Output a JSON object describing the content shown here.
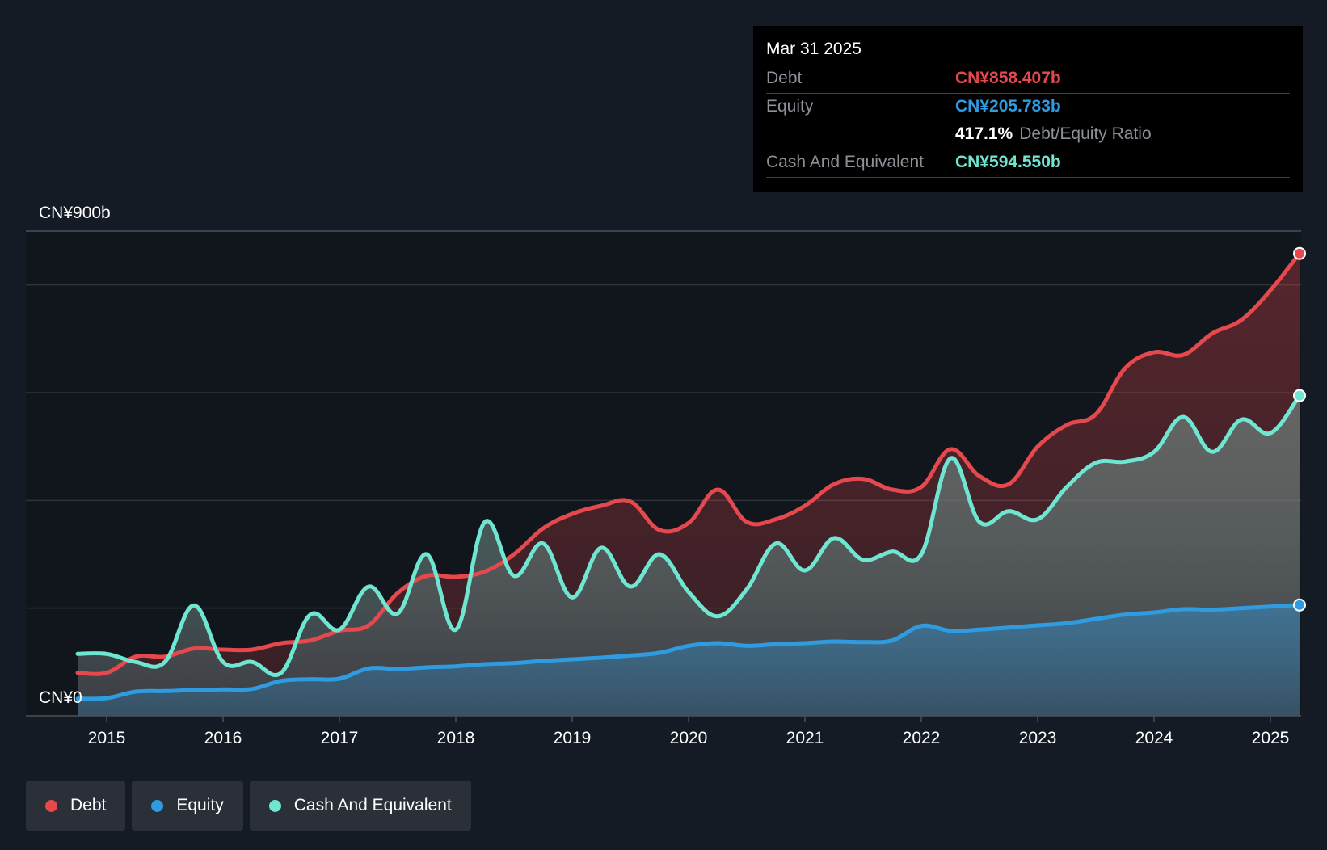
{
  "colors": {
    "debt": "#e5484d",
    "equity": "#2f9be0",
    "cash": "#6fe6d2",
    "background": "#151b24",
    "plot_background": "#11161d",
    "grid": "#2f353d"
  },
  "tooltip": {
    "date": "Mar 31 2025",
    "debt_label": "Debt",
    "debt_value": "CN¥858.407b",
    "equity_label": "Equity",
    "equity_value": "CN¥205.783b",
    "ratio_value": "417.1%",
    "ratio_label": "Debt/Equity Ratio",
    "cash_label": "Cash And Equivalent",
    "cash_value": "CN¥594.550b"
  },
  "legend": {
    "debt": "Debt",
    "equity": "Equity",
    "cash": "Cash And Equivalent"
  },
  "chart_data": {
    "type": "area",
    "title": "",
    "xlabel": "",
    "ylabel": "",
    "y_unit": "CN¥ billions",
    "ylim": [
      0,
      900
    ],
    "xlim": [
      2014.75,
      2025.25
    ],
    "y_axis_labels": {
      "max": "CN¥900b",
      "min": "CN¥0"
    },
    "x_ticks": [
      2015,
      2016,
      2017,
      2018,
      2019,
      2020,
      2021,
      2022,
      2023,
      2024,
      2025
    ],
    "x_tick_labels": [
      "2015",
      "2016",
      "2017",
      "2018",
      "2019",
      "2020",
      "2021",
      "2022",
      "2023",
      "2024",
      "2025"
    ],
    "gridlines": [
      0,
      200,
      400,
      600,
      800,
      900
    ],
    "legend_position": "bottom-left",
    "series": [
      {
        "name": "Debt",
        "key": "debt",
        "points": [
          [
            2014.75,
            80
          ],
          [
            2015.0,
            80
          ],
          [
            2015.25,
            110
          ],
          [
            2015.5,
            110
          ],
          [
            2015.75,
            125
          ],
          [
            2016.0,
            123
          ],
          [
            2016.25,
            123
          ],
          [
            2016.5,
            135
          ],
          [
            2016.75,
            140
          ],
          [
            2017.0,
            158
          ],
          [
            2017.25,
            168
          ],
          [
            2017.5,
            228
          ],
          [
            2017.75,
            260
          ],
          [
            2018.0,
            258
          ],
          [
            2018.25,
            268
          ],
          [
            2018.5,
            300
          ],
          [
            2018.75,
            348
          ],
          [
            2019.0,
            375
          ],
          [
            2019.25,
            390
          ],
          [
            2019.5,
            398
          ],
          [
            2019.75,
            345
          ],
          [
            2020.0,
            358
          ],
          [
            2020.25,
            420
          ],
          [
            2020.5,
            360
          ],
          [
            2020.75,
            365
          ],
          [
            2021.0,
            390
          ],
          [
            2021.25,
            430
          ],
          [
            2021.5,
            440
          ],
          [
            2021.75,
            420
          ],
          [
            2022.0,
            425
          ],
          [
            2022.25,
            495
          ],
          [
            2022.5,
            445
          ],
          [
            2022.75,
            430
          ],
          [
            2023.0,
            500
          ],
          [
            2023.25,
            540
          ],
          [
            2023.5,
            560
          ],
          [
            2023.75,
            645
          ],
          [
            2024.0,
            675
          ],
          [
            2024.25,
            670
          ],
          [
            2024.5,
            710
          ],
          [
            2024.75,
            735
          ],
          [
            2025.0,
            790
          ],
          [
            2025.25,
            858.4
          ]
        ]
      },
      {
        "name": "Equity",
        "key": "equity",
        "points": [
          [
            2014.75,
            32
          ],
          [
            2015.0,
            33
          ],
          [
            2015.25,
            45
          ],
          [
            2015.5,
            46
          ],
          [
            2015.75,
            48
          ],
          [
            2016.0,
            49
          ],
          [
            2016.25,
            50
          ],
          [
            2016.5,
            65
          ],
          [
            2016.75,
            68
          ],
          [
            2017.0,
            69
          ],
          [
            2017.25,
            88
          ],
          [
            2017.5,
            87
          ],
          [
            2017.75,
            90
          ],
          [
            2018.0,
            92
          ],
          [
            2018.25,
            96
          ],
          [
            2018.5,
            98
          ],
          [
            2018.75,
            102
          ],
          [
            2019.0,
            105
          ],
          [
            2019.25,
            108
          ],
          [
            2019.5,
            112
          ],
          [
            2019.75,
            117
          ],
          [
            2020.0,
            130
          ],
          [
            2020.25,
            135
          ],
          [
            2020.5,
            130
          ],
          [
            2020.75,
            133
          ],
          [
            2021.0,
            135
          ],
          [
            2021.25,
            138
          ],
          [
            2021.5,
            137
          ],
          [
            2021.75,
            140
          ],
          [
            2022.0,
            167
          ],
          [
            2022.25,
            158
          ],
          [
            2022.5,
            160
          ],
          [
            2022.75,
            164
          ],
          [
            2023.0,
            168
          ],
          [
            2023.25,
            172
          ],
          [
            2023.5,
            180
          ],
          [
            2023.75,
            188
          ],
          [
            2024.0,
            192
          ],
          [
            2024.25,
            198
          ],
          [
            2024.5,
            197
          ],
          [
            2024.75,
            200
          ],
          [
            2025.0,
            203
          ],
          [
            2025.25,
            205.8
          ]
        ]
      },
      {
        "name": "Cash And Equivalent",
        "key": "cash",
        "points": [
          [
            2014.75,
            115
          ],
          [
            2015.0,
            115
          ],
          [
            2015.25,
            100
          ],
          [
            2015.5,
            100
          ],
          [
            2015.75,
            205
          ],
          [
            2016.0,
            100
          ],
          [
            2016.25,
            100
          ],
          [
            2016.5,
            80
          ],
          [
            2016.75,
            188
          ],
          [
            2017.0,
            160
          ],
          [
            2017.25,
            240
          ],
          [
            2017.5,
            190
          ],
          [
            2017.75,
            300
          ],
          [
            2018.0,
            160
          ],
          [
            2018.25,
            360
          ],
          [
            2018.5,
            260
          ],
          [
            2018.75,
            320
          ],
          [
            2019.0,
            220
          ],
          [
            2019.25,
            312
          ],
          [
            2019.5,
            240
          ],
          [
            2019.75,
            300
          ],
          [
            2020.0,
            230
          ],
          [
            2020.25,
            185
          ],
          [
            2020.5,
            235
          ],
          [
            2020.75,
            320
          ],
          [
            2021.0,
            270
          ],
          [
            2021.25,
            330
          ],
          [
            2021.5,
            290
          ],
          [
            2021.75,
            305
          ],
          [
            2022.0,
            300
          ],
          [
            2022.25,
            478
          ],
          [
            2022.5,
            360
          ],
          [
            2022.75,
            380
          ],
          [
            2023.0,
            365
          ],
          [
            2023.25,
            425
          ],
          [
            2023.5,
            470
          ],
          [
            2023.75,
            472
          ],
          [
            2024.0,
            490
          ],
          [
            2024.25,
            555
          ],
          [
            2024.5,
            490
          ],
          [
            2024.75,
            550
          ],
          [
            2025.0,
            525
          ],
          [
            2025.25,
            594.6
          ]
        ]
      }
    ]
  }
}
